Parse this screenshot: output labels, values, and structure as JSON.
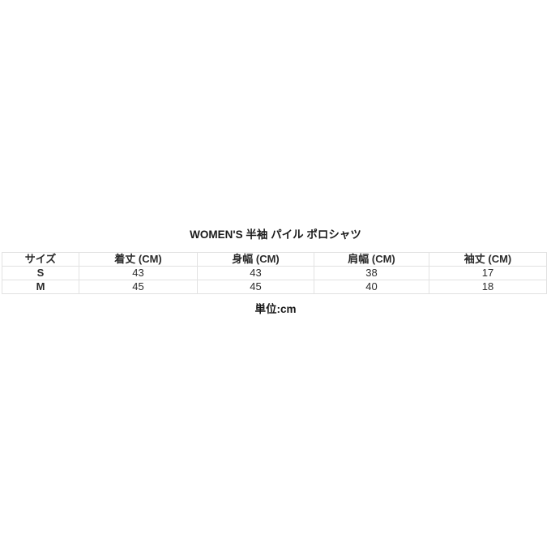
{
  "page": {
    "title": "WOMEN'S 半袖 パイル ポロシャツ",
    "unit_note": "単位:cm"
  },
  "size_table": {
    "columns": [
      "サイズ",
      "着丈 (CM)",
      "身幅 (CM)",
      "肩幅 (CM)",
      "袖丈 (CM)"
    ],
    "rows": [
      {
        "size": "S",
        "values": [
          "43",
          "43",
          "38",
          "17"
        ]
      },
      {
        "size": "M",
        "values": [
          "45",
          "45",
          "40",
          "18"
        ]
      }
    ]
  },
  "colors": {
    "background": "#ffffff",
    "border": "#e2e2e2",
    "text": "#2b2b2b",
    "title_text": "#1a1a1a"
  }
}
